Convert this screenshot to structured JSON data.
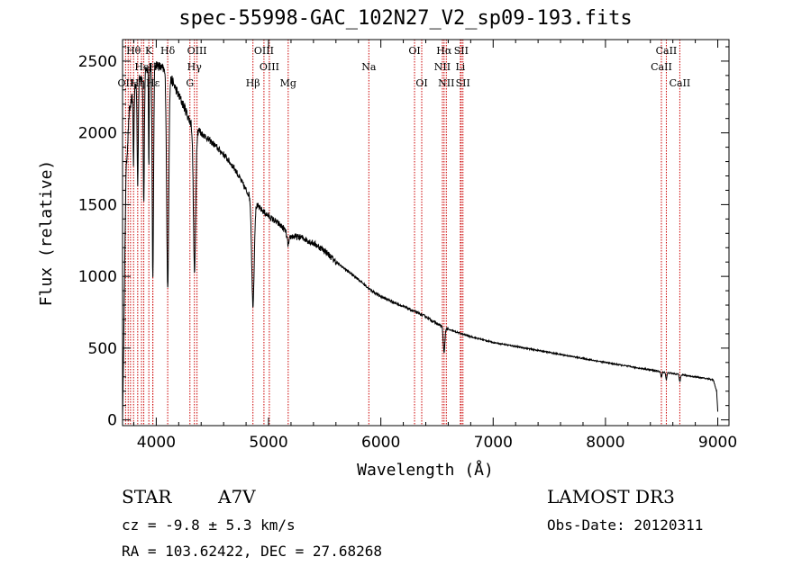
{
  "header": {
    "title": "spec-55998-GAC_102N27_V2_sp09-193.fits"
  },
  "info": {
    "object_type": "STAR",
    "subclass": "A7V",
    "survey": "LAMOST DR3",
    "cz": "cz = -9.8 ± 5.3 km/s",
    "obs_date": "Obs-Date: 20120311",
    "radec": "RA = 103.62422, DEC =  27.68268"
  },
  "colors": {
    "line_marker": "#cc0000",
    "spectrum": "#000000",
    "axes": "#000000"
  },
  "chart_data": {
    "type": "line",
    "title": "spec-55998-GAC_102N27_V2_sp09-193.fits",
    "xlabel": "Wavelength (Å)",
    "ylabel": "Flux (relative)",
    "xlim": [
      3700,
      9100
    ],
    "ylim": [
      -40,
      2650
    ],
    "x_ticks": [
      4000,
      5000,
      6000,
      7000,
      8000,
      9000
    ],
    "x_tick_labels": [
      "4000",
      "5000",
      "6000",
      "7000",
      "8000",
      "9000"
    ],
    "y_ticks": [
      0,
      500,
      1000,
      1500,
      2000,
      2500
    ],
    "y_tick_labels": [
      "0",
      "500",
      "1000",
      "1500",
      "2000",
      "2500"
    ],
    "continuum": [
      [
        3700,
        0
      ],
      [
        3715,
        800
      ],
      [
        3730,
        1700
      ],
      [
        3760,
        2150
      ],
      [
        3800,
        2300
      ],
      [
        3850,
        2380
      ],
      [
        3900,
        2420
      ],
      [
        3950,
        2470
      ],
      [
        4000,
        2480
      ],
      [
        4050,
        2450
      ],
      [
        4100,
        2420
      ],
      [
        4150,
        2350
      ],
      [
        4200,
        2260
      ],
      [
        4250,
        2180
      ],
      [
        4300,
        2080
      ],
      [
        4400,
        2000
      ],
      [
        4500,
        1930
      ],
      [
        4600,
        1850
      ],
      [
        4700,
        1750
      ],
      [
        4800,
        1600
      ],
      [
        4900,
        1490
      ],
      [
        5000,
        1420
      ],
      [
        5100,
        1360
      ],
      [
        5200,
        1280
      ],
      [
        5300,
        1270
      ],
      [
        5400,
        1230
      ],
      [
        5500,
        1180
      ],
      [
        5600,
        1100
      ],
      [
        5700,
        1040
      ],
      [
        5800,
        980
      ],
      [
        5900,
        910
      ],
      [
        6000,
        860
      ],
      [
        6200,
        790
      ],
      [
        6400,
        720
      ],
      [
        6500,
        670
      ],
      [
        6600,
        630
      ],
      [
        6800,
        580
      ],
      [
        7000,
        540
      ],
      [
        7500,
        470
      ],
      [
        8000,
        400
      ],
      [
        8500,
        335
      ],
      [
        8800,
        300
      ],
      [
        8960,
        280
      ],
      [
        8990,
        200
      ],
      [
        9000,
        60
      ]
    ],
    "absorption": [
      {
        "center": 3798,
        "depth": 500,
        "width": 4
      },
      {
        "center": 3835,
        "depth": 700,
        "width": 5
      },
      {
        "center": 3889,
        "depth": 900,
        "width": 5
      },
      {
        "center": 3934,
        "depth": 700,
        "width": 3
      },
      {
        "center": 3970,
        "depth": 1500,
        "width": 6
      },
      {
        "center": 4102,
        "depth": 1500,
        "width": 9
      },
      {
        "center": 4341,
        "depth": 1020,
        "width": 10
      },
      {
        "center": 4861,
        "depth": 730,
        "width": 11
      },
      {
        "center": 5175,
        "depth": 80,
        "width": 10
      },
      {
        "center": 6563,
        "depth": 180,
        "width": 7
      },
      {
        "center": 8498,
        "depth": 40,
        "width": 5
      },
      {
        "center": 8542,
        "depth": 50,
        "width": 5
      },
      {
        "center": 8662,
        "depth": 50,
        "width": 5
      }
    ],
    "line_markers": [
      {
        "wave": 3727,
        "label": "OII",
        "row": 2
      },
      {
        "wave": 3750,
        "label": "",
        "row": 0
      },
      {
        "wave": 3771,
        "label": "",
        "row": 0
      },
      {
        "wave": 3798,
        "label": "Hθ",
        "row": 0
      },
      {
        "wave": 3835,
        "label": "Hη",
        "row": 2
      },
      {
        "wave": 3869,
        "label": "",
        "row": 0
      },
      {
        "wave": 3889,
        "label": "HeI",
        "row": 1
      },
      {
        "wave": 3934,
        "label": "K",
        "row": 0
      },
      {
        "wave": 3969,
        "label": "H",
        "row": 1
      },
      {
        "wave": 3970,
        "label": "Hε",
        "row": 2
      },
      {
        "wave": 4102,
        "label": "Hδ",
        "row": 0
      },
      {
        "wave": 4300,
        "label": "G",
        "row": 2
      },
      {
        "wave": 4340,
        "label": "Hγ",
        "row": 1
      },
      {
        "wave": 4363,
        "label": "OIII",
        "row": 0
      },
      {
        "wave": 4861,
        "label": "Hβ",
        "row": 2
      },
      {
        "wave": 4959,
        "label": "OIII",
        "row": 0
      },
      {
        "wave": 5007,
        "label": "OIII",
        "row": 1
      },
      {
        "wave": 5175,
        "label": "Mg",
        "row": 2
      },
      {
        "wave": 5893,
        "label": "Na",
        "row": 1
      },
      {
        "wave": 6300,
        "label": "OI",
        "row": 0
      },
      {
        "wave": 6364,
        "label": "OI",
        "row": 2
      },
      {
        "wave": 6548,
        "label": "NII",
        "row": 1
      },
      {
        "wave": 6563,
        "label": "Hα",
        "row": 0
      },
      {
        "wave": 6583,
        "label": "NII",
        "row": 2
      },
      {
        "wave": 6708,
        "label": "Li",
        "row": 1
      },
      {
        "wave": 6716,
        "label": "SII",
        "row": 0
      },
      {
        "wave": 6731,
        "label": "SII",
        "row": 2
      },
      {
        "wave": 8498,
        "label": "CaII",
        "row": 1
      },
      {
        "wave": 8542,
        "label": "CaII",
        "row": 0
      },
      {
        "wave": 8662,
        "label": "CaII",
        "row": 2
      }
    ]
  }
}
